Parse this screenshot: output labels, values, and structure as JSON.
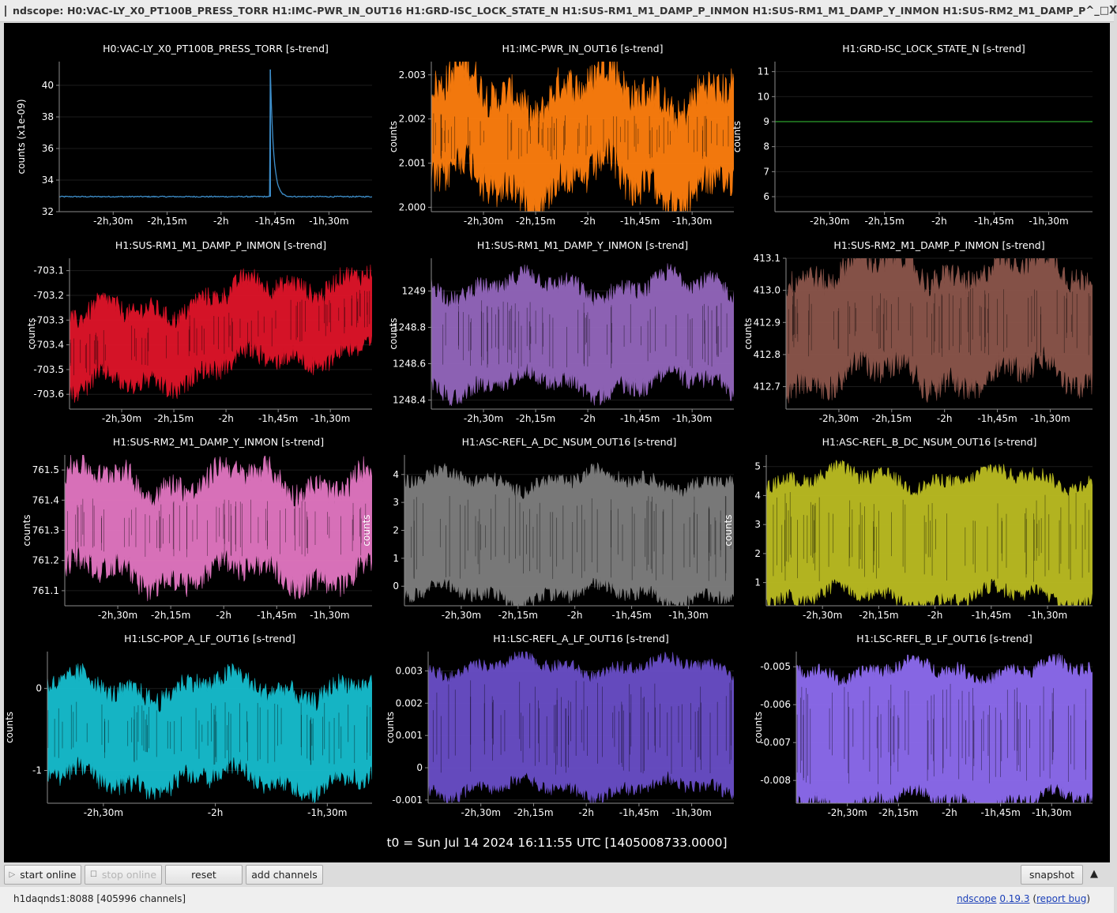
{
  "window": {
    "title": "ndscope: H0:VAC-LY_X0_PT100B_PRESS_TORR H1:IMC-PWR_IN_OUT16 H1:GRD-ISC_LOCK_STATE_N H1:SUS-RM1_M1_DAMP_P_INMON H1:SUS-RM1_M1_DAMP_Y_INMON H1:SUS-RM2_M1_DAMP_P",
    "controls": [
      "^",
      "_",
      "□",
      "X"
    ]
  },
  "t0_label": "t0 = Sun Jul 14 2024 16:11:55 UTC [1405008733.0000]",
  "toolbar": {
    "start_online": "start online",
    "stop_online": "stop online",
    "reset": "reset",
    "add_channels": "add channels",
    "snapshot": "snapshot",
    "collapse_icon": "▲"
  },
  "status": {
    "server": "h1daqnds1:8088  [405996 channels]",
    "app_name": "ndscope",
    "version": "0.19.3",
    "report_bug": "report bug",
    "paren_open": "(",
    "paren_close": ")"
  },
  "colors": {
    "background": "#000000",
    "axis": "#8c8c8c",
    "text": "#ffffff"
  },
  "chart_data": [
    {
      "type": "line",
      "title": "H0:VAC-LY_X0_PT100B_PRESS_TORR [s-trend]",
      "ylabel": "counts (x1e-09)",
      "yticks": [
        "40",
        "38",
        "36",
        "34",
        "32"
      ],
      "ytick_values": [
        40,
        38,
        36,
        34,
        32
      ],
      "ylim": [
        32,
        41.5
      ],
      "xticks": [
        "-2h,30m",
        "-2h,15m",
        "-2h",
        "-1h,45m",
        "-1h,30m"
      ],
      "xtick_values": [
        -150,
        -135,
        -120,
        -105,
        -90
      ],
      "xlim": [
        -165,
        -78
      ],
      "color": "#3e8fcb",
      "style": "line",
      "series": {
        "kind": "spike",
        "base": 32.95,
        "spike_at": -106.3,
        "spike_peak": 41.0,
        "noise": 0.07
      }
    },
    {
      "type": "area",
      "title": "H1:IMC-PWR_IN_OUT16 [s-trend]",
      "ylabel": "counts",
      "yticks": [
        "2.003",
        "2.002",
        "2.001",
        "2.000"
      ],
      "ytick_values": [
        2.003,
        2.002,
        2.001,
        2.0
      ],
      "ylim": [
        1.9999,
        2.0033
      ],
      "xticks": [
        "-2h,30m",
        "-2h,15m",
        "-2h",
        "-1h,45m",
        "-1h,30m"
      ],
      "xtick_values": [
        -150,
        -135,
        -120,
        -105,
        -90
      ],
      "xlim": [
        -165,
        -78
      ],
      "color": "#ff7f0e",
      "style": "band",
      "series": {
        "kind": "band",
        "min_base": 2.001,
        "max_base": 2.0022,
        "jitter": 0.0004
      }
    },
    {
      "type": "line",
      "title": "H1:GRD-ISC_LOCK_STATE_N [s-trend]",
      "ylabel": "counts",
      "yticks": [
        "11",
        "10",
        "9",
        "8",
        "7",
        "6"
      ],
      "ytick_values": [
        11,
        10,
        9,
        8,
        7,
        6
      ],
      "ylim": [
        5.4,
        11.4
      ],
      "xticks": [
        "-2h,30m",
        "-2h,15m",
        "-2h",
        "-1h,45m",
        "-1h,30m"
      ],
      "xtick_values": [
        -150,
        -135,
        -120,
        -105,
        -90
      ],
      "xlim": [
        -165,
        -78
      ],
      "color": "#2ca02c",
      "style": "line",
      "series": {
        "kind": "constant",
        "value": 9
      }
    },
    {
      "type": "area",
      "title": "H1:SUS-RM1_M1_DAMP_P_INMON [s-trend]",
      "ylabel": "counts",
      "yticks": [
        "-703.1",
        "-703.2",
        "-703.3",
        "-703.4",
        "-703.5",
        "-703.6"
      ],
      "ytick_values": [
        -703.1,
        -703.2,
        -703.3,
        -703.4,
        -703.5,
        -703.6
      ],
      "ylim": [
        -703.66,
        -703.05
      ],
      "xticks": [
        "-2h,30m",
        "-2h,15m",
        "-2h",
        "-1h,45m",
        "-1h,30m"
      ],
      "xtick_values": [
        -150,
        -135,
        -120,
        -105,
        -90
      ],
      "xlim": [
        -165,
        -78
      ],
      "color": "#e0152a",
      "style": "band",
      "series": {
        "kind": "band",
        "min_base": -703.55,
        "max_base": -703.35,
        "trend": 0.2,
        "jitter": 0.04
      }
    },
    {
      "type": "area",
      "title": "H1:SUS-RM1_M1_DAMP_Y_INMON [s-trend]",
      "ylabel": "counts",
      "yticks": [
        "1249",
        "1248.8",
        "1248.6",
        "1248.4"
      ],
      "ytick_values": [
        1249.0,
        1248.8,
        1248.6,
        1248.4
      ],
      "ylim": [
        1248.35,
        1249.18
      ],
      "xticks": [
        "-2h,30m",
        "-2h,15m",
        "-2h",
        "-1h,45m",
        "-1h,30m"
      ],
      "xtick_values": [
        -150,
        -135,
        -120,
        -105,
        -90
      ],
      "xlim": [
        -165,
        -78
      ],
      "color": "#9467bd",
      "style": "band",
      "series": {
        "kind": "band",
        "min_base": 1248.55,
        "max_base": 1248.97,
        "jitter": 0.05
      }
    },
    {
      "type": "area",
      "title": "H1:SUS-RM2_M1_DAMP_P_INMON [s-trend]",
      "ylabel": "counts",
      "yticks": [
        "413.1",
        "413.0",
        "412.9",
        "412.8",
        "412.7"
      ],
      "ytick_values": [
        413.1,
        413.0,
        412.9,
        412.8,
        412.7
      ],
      "ylim": [
        412.63,
        413.1
      ],
      "xticks": [
        "-2h,30m",
        "-2h,15m",
        "-2h",
        "-1h,45m",
        "-1h,30m"
      ],
      "xtick_values": [
        -150,
        -135,
        -120,
        -105,
        -90
      ],
      "xlim": [
        -165,
        -78
      ],
      "color": "#8c564b",
      "style": "band",
      "series": {
        "kind": "band",
        "min_base": 412.78,
        "max_base": 413.02,
        "jitter": 0.04
      }
    },
    {
      "type": "area",
      "title": "H1:SUS-RM2_M1_DAMP_Y_INMON [s-trend]",
      "ylabel": "counts",
      "yticks": [
        "761.5",
        "761.4",
        "761.3",
        "761.2",
        "761.1"
      ],
      "ytick_values": [
        761.5,
        761.4,
        761.3,
        761.2,
        761.1
      ],
      "ylim": [
        761.05,
        761.55
      ],
      "xticks": [
        "-2h,30m",
        "-2h,15m",
        "-2h",
        "-1h,45m",
        "-1h,30m"
      ],
      "xtick_values": [
        -150,
        -135,
        -120,
        -105,
        -90
      ],
      "xlim": [
        -165,
        -78
      ],
      "color": "#e377c2",
      "style": "band",
      "series": {
        "kind": "band",
        "min_base": 761.2,
        "max_base": 761.42,
        "jitter": 0.04
      }
    },
    {
      "type": "area",
      "title": "H1:ASC-REFL_A_DC_NSUM_OUT16 [s-trend]",
      "ylabel": "counts",
      "yticks": [
        "4",
        "3",
        "2",
        "1",
        "0"
      ],
      "ytick_values": [
        4,
        3,
        2,
        1,
        0
      ],
      "ylim": [
        -0.7,
        4.7
      ],
      "xticks": [
        "-2h,30m",
        "-2h,15m",
        "-2h",
        "-1h,45m",
        "-1h,30m"
      ],
      "xtick_values": [
        -150,
        -135,
        -120,
        -105,
        -90
      ],
      "xlim": [
        -165,
        -78
      ],
      "color": "#7f7f7f",
      "style": "band",
      "series": {
        "kind": "band",
        "min_base": 0.0,
        "max_base": 3.5,
        "jitter": 0.25
      }
    },
    {
      "type": "area",
      "title": "H1:ASC-REFL_B_DC_NSUM_OUT16 [s-trend]",
      "ylabel": "counts",
      "yticks": [
        "5",
        "4",
        "3",
        "2",
        "1"
      ],
      "ytick_values": [
        5,
        4,
        3,
        2,
        1
      ],
      "ylim": [
        0.2,
        5.4
      ],
      "xticks": [
        "-2h,30m",
        "-2h,15m",
        "-2h",
        "-1h,45m",
        "-1h,30m"
      ],
      "xtick_values": [
        -150,
        -135,
        -120,
        -105,
        -90
      ],
      "xlim": [
        -165,
        -78
      ],
      "color": "#bcbd22",
      "style": "band",
      "series": {
        "kind": "band",
        "min_base": 0.8,
        "max_base": 4.3,
        "jitter": 0.25
      }
    },
    {
      "type": "area",
      "title": "H1:LSC-POP_A_LF_OUT16 [s-trend]",
      "ylabel": "counts",
      "yticks": [
        "0",
        "-1"
      ],
      "ytick_values": [
        0,
        -1
      ],
      "ylim": [
        -1.4,
        0.45
      ],
      "xticks": [
        "-2h,30m",
        "-2h",
        "-1h,30m"
      ],
      "xtick_values": [
        -150,
        -120,
        -90
      ],
      "xlim": [
        -165,
        -78
      ],
      "color": "#17becf",
      "style": "band",
      "series": {
        "kind": "band",
        "min_base": -0.98,
        "max_base": -0.12,
        "jitter": 0.12
      }
    },
    {
      "type": "area",
      "title": "H1:LSC-REFL_A_LF_OUT16 [s-trend]",
      "ylabel": "counts",
      "yticks": [
        "0.003",
        "0.002",
        "0.001",
        "0",
        "-0.001"
      ],
      "ytick_values": [
        0.003,
        0.002,
        0.001,
        0,
        -0.001
      ],
      "ylim": [
        -0.0011,
        0.0036
      ],
      "xticks": [
        "-2h,30m",
        "-2h,15m",
        "-2h",
        "-1h,45m",
        "-1h,30m"
      ],
      "xtick_values": [
        -150,
        -135,
        -120,
        -105,
        -90
      ],
      "xlim": [
        -165,
        -78
      ],
      "color": "#6a4fc8",
      "style": "band",
      "series": {
        "kind": "band",
        "min_base": -0.0004,
        "max_base": 0.0029,
        "jitter": 0.0002
      }
    },
    {
      "type": "area",
      "title": "H1:LSC-REFL_B_LF_OUT16 [s-trend]",
      "ylabel": "counts",
      "yticks": [
        "-0.005",
        "-0.006",
        "-0.007",
        "-0.008"
      ],
      "ytick_values": [
        -0.005,
        -0.006,
        -0.007,
        -0.008
      ],
      "ylim": [
        -0.0086,
        -0.0046
      ],
      "xticks": [
        "-2h,30m",
        "-2h,15m",
        "-2h",
        "-1h,45m",
        "-1h,30m"
      ],
      "xtick_values": [
        -150,
        -135,
        -120,
        -105,
        -90
      ],
      "xlim": [
        -165,
        -78
      ],
      "color": "#8e6cf0",
      "style": "band",
      "series": {
        "kind": "band",
        "min_base": -0.0083,
        "max_base": -0.0053,
        "jitter": 0.00018
      }
    }
  ]
}
